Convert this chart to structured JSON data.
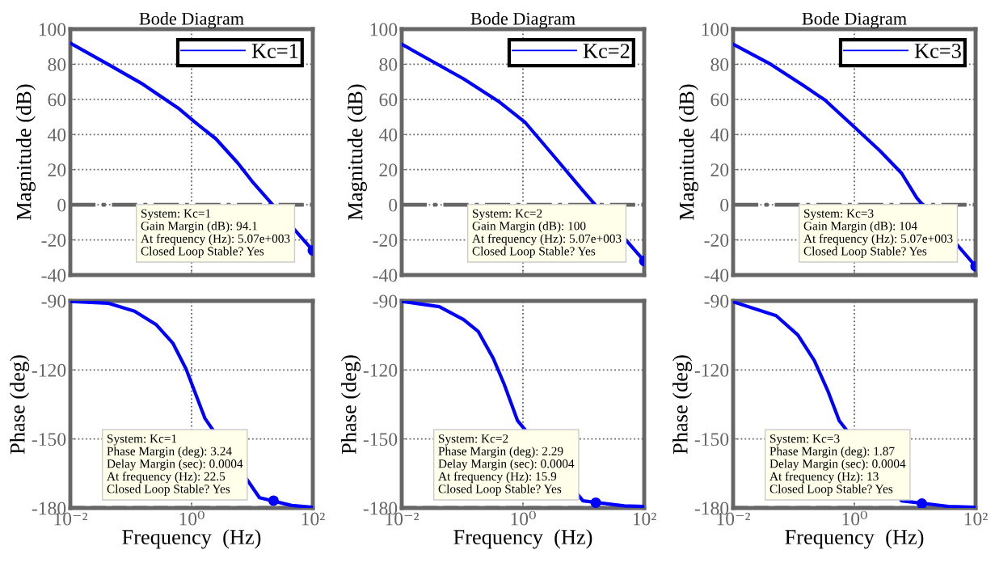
{
  "chart_data": [
    {
      "type": "line",
      "title": "Bode Diagram",
      "ylabel": "Magnitude (dB)",
      "log": "x",
      "xlim": [
        0.01,
        100
      ],
      "xticks": [
        {
          "value": 0.01,
          "label": null
        },
        {
          "value": 1,
          "label": null
        },
        {
          "value": 100,
          "label": null
        }
      ],
      "ylim": [
        -40,
        100
      ],
      "yticks": [
        -40,
        -20,
        0,
        20,
        40,
        60,
        80,
        100
      ],
      "tick_labels": "y",
      "grid": true,
      "legend": "top right",
      "series": [
        {
          "name": "Kc=1",
          "color": "#0000ff",
          "x": [
            0.01,
            0.0417,
            0.158,
            0.603,
            1.1,
            2.51,
            5.75,
            10,
            100
          ],
          "values": [
            92,
            80,
            68.6,
            55,
            47.4,
            37.6,
            23.9,
            13.3,
            -26
          ]
        },
        {
          "type": "scatter",
          "marker": "circle",
          "color": "#0000ff",
          "x": [
            100
          ],
          "values": [
            -26
          ]
        }
      ],
      "ref_lines": [
        {
          "axis": "y",
          "value": 0,
          "color": "#666666",
          "line_style": "dashdot"
        }
      ],
      "annotations": [
        "System: Kc=1\nGain Margin (dB): 94.1\nAt frequency (Hz): 5.07e+003\nClosed Loop Stable? Yes"
      ]
    },
    {
      "type": "line",
      "title": "Bode Diagram",
      "ylabel": "Magnitude (dB)",
      "log": "x",
      "xlim": [
        0.01,
        100
      ],
      "xticks": [
        {
          "value": 0.01,
          "label": null
        },
        {
          "value": 1,
          "label": null
        },
        {
          "value": 100,
          "label": null
        }
      ],
      "ylim": [
        -40,
        100
      ],
      "yticks": [
        -40,
        -20,
        0,
        20,
        40,
        60,
        80,
        100
      ],
      "tick_labels": "y",
      "grid": true,
      "legend": "top right",
      "series": [
        {
          "name": "Kc=2",
          "color": "#0000ff",
          "x": [
            0.01,
            0.105,
            0.398,
            1.1,
            3.09,
            10,
            100
          ],
          "values": [
            91.4,
            71.7,
            58.8,
            46.7,
            28.5,
            7.6,
            -32
          ]
        },
        {
          "type": "scatter",
          "marker": "circle",
          "color": "#0000ff",
          "x": [
            100
          ],
          "values": [
            -32
          ]
        }
      ],
      "ref_lines": [
        {
          "axis": "y",
          "value": 0,
          "color": "#666666",
          "line_style": "dashdot"
        }
      ],
      "annotations": [
        "System: Kc=2\nGain Margin (dB): 100\nAt frequency (Hz): 5.07e+003\nClosed Loop Stable? Yes"
      ]
    },
    {
      "type": "line",
      "title": "Bode Diagram",
      "ylabel": "Magnitude (dB)",
      "log": "x",
      "xlim": [
        0.01,
        100
      ],
      "xticks": [
        {
          "value": 0.01,
          "label": null
        },
        {
          "value": 1,
          "label": null
        },
        {
          "value": 100,
          "label": null
        }
      ],
      "ylim": [
        -40,
        100
      ],
      "yticks": [
        -40,
        -20,
        0,
        20,
        40,
        60,
        80,
        100
      ],
      "tick_labels": "y",
      "grid": true,
      "legend": "top right",
      "series": [
        {
          "name": "Kc=3",
          "color": "#0000ff",
          "x": [
            0.01,
            0.0417,
            0.145,
            0.331,
            0.933,
            2.63,
            6.03,
            10.7,
            100
          ],
          "values": [
            91.4,
            80,
            67.9,
            59.5,
            45.2,
            30.8,
            17.9,
            3.9,
            -35
          ]
        },
        {
          "type": "scatter",
          "marker": "circle",
          "color": "#0000ff",
          "x": [
            100
          ],
          "values": [
            -35
          ]
        }
      ],
      "ref_lines": [
        {
          "axis": "y",
          "value": 0,
          "color": "#666666",
          "line_style": "dashdot"
        }
      ],
      "annotations": [
        "System: Kc=3\nGain Margin (dB): 104\nAt frequency (Hz): 5.07e+003\nClosed Loop Stable? Yes"
      ]
    },
    {
      "type": "line",
      "xlabel": "Frequency  (Hz)",
      "ylabel": "Phase (deg)",
      "log": "x",
      "xlim": [
        0.01,
        100
      ],
      "xticks": [
        {
          "value": 0.01,
          "label": "10⁻²"
        },
        {
          "value": 1,
          "label": "10⁰"
        },
        {
          "value": 100,
          "label": "10²"
        }
      ],
      "ylim": [
        -180,
        -90
      ],
      "yticks": [
        -180,
        -150,
        -120,
        -90
      ],
      "grid": true,
      "series": [
        {
          "color": "#0000ff",
          "x": [
            0.01,
            0.0417,
            0.115,
            0.263,
            0.49,
            0.813,
            1.23,
            1.66,
            13.2,
            44.7,
            100
          ],
          "values": [
            -90.2,
            -91,
            -94.5,
            -100.4,
            -108.3,
            -119.6,
            -132,
            -141,
            -175.5,
            -178.9,
            -179.7
          ]
        },
        {
          "type": "scatter",
          "marker": "circle",
          "color": "#0000ff",
          "x": [
            22.5
          ],
          "values": [
            -176.8
          ]
        }
      ],
      "ref_lines": [
        {
          "axis": "y",
          "value": -180,
          "color": "#666666",
          "line_style": "dashed"
        }
      ],
      "annotations": [
        "System: Kc=1\nPhase Margin (deg): 3.24\nDelay Margin (sec): 0.0004\nAt frequency (Hz): 22.5\nClosed Loop Stable? Yes"
      ]
    },
    {
      "type": "line",
      "xlabel": "Frequency  (Hz)",
      "ylabel": "Phase (deg)",
      "log": "x",
      "xlim": [
        0.01,
        100
      ],
      "xticks": [
        {
          "value": 0.01,
          "label": "10⁻²"
        },
        {
          "value": 1,
          "label": "10⁰"
        },
        {
          "value": 100,
          "label": "10²"
        }
      ],
      "ylim": [
        -180,
        -90
      ],
      "yticks": [
        -180,
        -150,
        -120,
        -90
      ],
      "grid": true,
      "series": [
        {
          "color": "#0000ff",
          "x": [
            0.01,
            0.0417,
            0.105,
            0.182,
            0.324,
            0.49,
            0.813,
            9.77,
            46.8,
            100
          ],
          "values": [
            -90.2,
            -92.5,
            -98.1,
            -103.2,
            -115,
            -126.2,
            -142,
            -176.9,
            -179.1,
            -179.3
          ]
        },
        {
          "type": "scatter",
          "marker": "circle",
          "color": "#0000ff",
          "x": [
            15.9
          ],
          "values": [
            -177.7
          ]
        }
      ],
      "ref_lines": [
        {
          "axis": "y",
          "value": -180,
          "color": "#666666",
          "line_style": "dashed"
        }
      ],
      "annotations": [
        "System: Kc=2\nPhase Margin (deg): 2.29\nDelay Margin (sec): 0.0004\nAt frequency (Hz): 15.9\nClosed Loop Stable? Yes"
      ]
    },
    {
      "type": "line",
      "xlabel": "Frequency  (Hz)",
      "ylabel": "Phase (deg)",
      "log": "x",
      "xlim": [
        0.01,
        100
      ],
      "xticks": [
        {
          "value": 0.01,
          "label": "10⁻²"
        },
        {
          "value": 1,
          "label": "10⁰"
        },
        {
          "value": 100,
          "label": "10²"
        }
      ],
      "ylim": [
        -180,
        -90
      ],
      "yticks": [
        -180,
        -150,
        -120,
        -90
      ],
      "grid": true,
      "series": [
        {
          "color": "#0000ff",
          "x": [
            0.01,
            0.0513,
            0.117,
            0.219,
            0.372,
            0.562,
            6.03,
            35.5,
            100
          ],
          "values": [
            -90.4,
            -96.4,
            -104.8,
            -116,
            -129.6,
            -142,
            -176.9,
            -179.3,
            -179.7
          ]
        },
        {
          "type": "scatter",
          "marker": "circle",
          "color": "#0000ff",
          "x": [
            13
          ],
          "values": [
            -178.1
          ]
        }
      ],
      "ref_lines": [
        {
          "axis": "y",
          "value": -180,
          "color": "#666666",
          "line_style": "dashed"
        }
      ],
      "annotations": [
        "System: Kc=3\nPhase Margin (deg): 1.87\nDelay Margin (sec): 0.0004\nAt frequency (Hz): 13\nClosed Loop Stable? Yes"
      ]
    }
  ]
}
